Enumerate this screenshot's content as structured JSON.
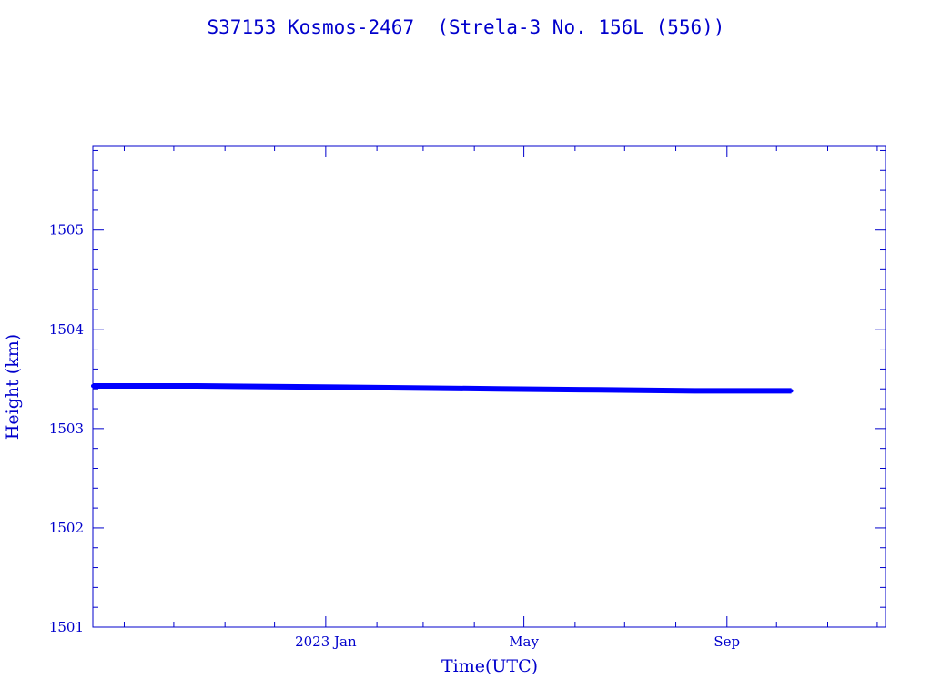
{
  "chart_data": {
    "type": "line",
    "title": "S37153 Kosmos-2467  (Strela-3 No. 156L (556))",
    "xlabel": "Time(UTC)",
    "ylabel": "Height (km)",
    "x_ticks": [
      {
        "label": "2023 Jan",
        "date": "2023-01-01"
      },
      {
        "label": "May",
        "date": "2023-05-01"
      },
      {
        "label": "Sep",
        "date": "2023-09-01"
      }
    ],
    "xlim": [
      "2022-08-13",
      "2023-12-06"
    ],
    "ylim": [
      1501,
      1505.85
    ],
    "y_ticks": [
      1501,
      1502,
      1503,
      1504,
      1505
    ],
    "y_tick_labels": [
      "1501",
      "1502",
      "1503",
      "1504",
      "1505"
    ],
    "grid": false,
    "series": [
      {
        "color": "#0000ff",
        "points": [
          {
            "x": "2022-08-13",
            "y": 1503.43
          },
          {
            "x": "2022-10-15",
            "y": 1503.43
          },
          {
            "x": "2022-12-15",
            "y": 1503.42
          },
          {
            "x": "2023-02-15",
            "y": 1503.41
          },
          {
            "x": "2023-04-15",
            "y": 1503.4
          },
          {
            "x": "2023-06-15",
            "y": 1503.39
          },
          {
            "x": "2023-08-15",
            "y": 1503.38
          },
          {
            "x": "2023-10-10",
            "y": 1503.38
          }
        ]
      }
    ],
    "colors": {
      "axes": "#0000cc",
      "text": "#0000cc",
      "data": "#0000ff"
    }
  }
}
